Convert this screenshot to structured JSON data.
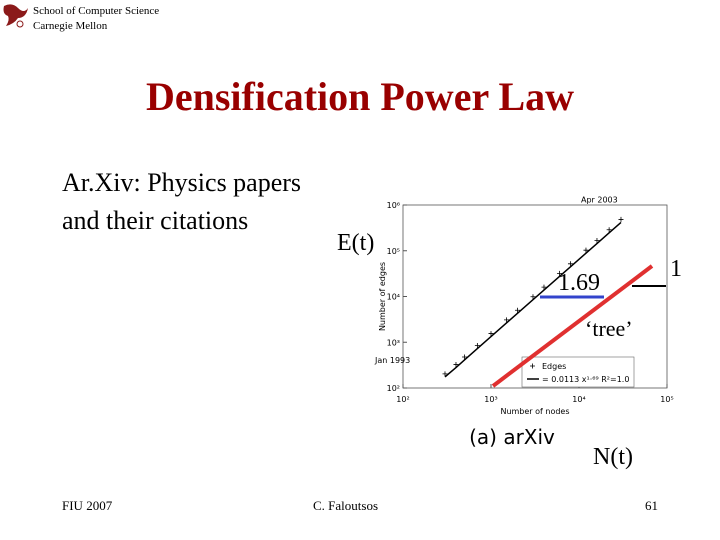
{
  "header": {
    "school": "School of Computer Science",
    "university": "Carnegie Mellon"
  },
  "title": "Densification Power Law",
  "body": {
    "line1": "Ar.Xiv: Physics papers",
    "line2": "and their citations"
  },
  "annotations": {
    "y_label": "E(t)",
    "slope": "1.69",
    "unit_slope": "1",
    "tree": "‘tree’",
    "x_label": "N(t)"
  },
  "chart_data": {
    "type": "scatter",
    "caption": "(a)  arXiv",
    "x_label": "Number of nodes",
    "y_label": "Number of edges",
    "start_label": "Jan 1993",
    "end_label": "Apr 2003",
    "log_scale": true,
    "xlim": [
      100,
      100000
    ],
    "ylim": [
      100,
      1000000
    ],
    "xticks": [
      {
        "value": 100,
        "label": "10²"
      },
      {
        "value": 1000,
        "label": "10³"
      },
      {
        "value": 10000,
        "label": "10⁴"
      },
      {
        "value": 100000,
        "label": "10⁵"
      }
    ],
    "yticks": [
      {
        "value": 100,
        "label": "10²"
      },
      {
        "value": 1000,
        "label": "10³"
      },
      {
        "value": 10000,
        "label": "10⁴"
      },
      {
        "value": 100000,
        "label": "10⁵"
      },
      {
        "value": 1000000,
        "label": "10⁶"
      }
    ],
    "series": [
      {
        "name": "Edges",
        "color": "#000000",
        "fit_label": "= 0.0113 x¹·⁶⁹ R²=1.0",
        "x": [
          300,
          400,
          500,
          700,
          1000,
          1500,
          2000,
          3000,
          4000,
          6000,
          8000,
          12000,
          16000,
          22000,
          30000
        ],
        "values": [
          175,
          280,
          410,
          730,
          1330,
          2650,
          4300,
          8500,
          13800,
          27500,
          44600,
          88500,
          144000,
          247000,
          416000
        ]
      }
    ]
  },
  "footer": {
    "left": "FIU 2007",
    "center": "C. Faloutsos",
    "right": "61"
  }
}
